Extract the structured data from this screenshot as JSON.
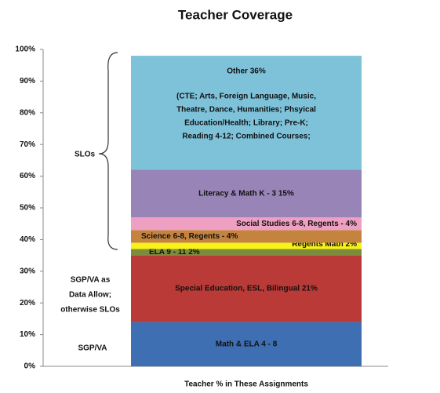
{
  "chart_data": {
    "type": "stacked-bar",
    "title": "Teacher Coverage",
    "x_label": "Teacher % in These Assignments",
    "ylim": [
      0,
      100
    ],
    "yticks": [
      {
        "value": 0,
        "label": "0%"
      },
      {
        "value": 10,
        "label": "10%"
      },
      {
        "value": 20,
        "label": "20%"
      },
      {
        "value": 30,
        "label": "30%"
      },
      {
        "value": 40,
        "label": "40%"
      },
      {
        "value": 50,
        "label": "50%"
      },
      {
        "value": 60,
        "label": "60%"
      },
      {
        "value": 70,
        "label": "70%"
      },
      {
        "value": 80,
        "label": "80%"
      },
      {
        "value": 90,
        "label": "90%"
      },
      {
        "value": 100,
        "label": "100%"
      }
    ],
    "series": [
      {
        "name": "Math & ELA 4 - 8",
        "color": "#3f6fb3",
        "values": [
          14
        ]
      },
      {
        "name": "Special Education, ESL, Bilingual  21%",
        "color": "#b93a36",
        "values": [
          21
        ]
      },
      {
        "name": "ELA 9 - 11  2%",
        "color": "#7d8b3c",
        "values": [
          2
        ]
      },
      {
        "name": "Regents Math  2%",
        "color": "#f6f21a",
        "values": [
          2
        ]
      },
      {
        "name": "Science 6-8, Regents - 4%",
        "color": "#c4843f",
        "values": [
          4
        ]
      },
      {
        "name": "Social Studies 6-8, Regents - 4%",
        "color": "#ee9fc2",
        "values": [
          4
        ]
      },
      {
        "name": "Literacy & Math K - 3  15%",
        "color": "#9884b6",
        "values": [
          15
        ]
      },
      {
        "name": "Other 36%",
        "color": "#7ec2da",
        "values": [
          36
        ]
      }
    ],
    "other_details": [
      "(CTE; Arts, Foreign Language, Music,",
      "Theatre, Dance, Humanities; Phsyical",
      "Education/Health; Library; Pre-K;",
      "Reading 4-12; Combined Courses;"
    ],
    "annotations": {
      "slos": "SLOs",
      "sgp_va_data": [
        "SGP/VA as",
        "Data Allow;",
        "otherwise SLOs"
      ],
      "sgp_va": "SGP/VA"
    }
  }
}
